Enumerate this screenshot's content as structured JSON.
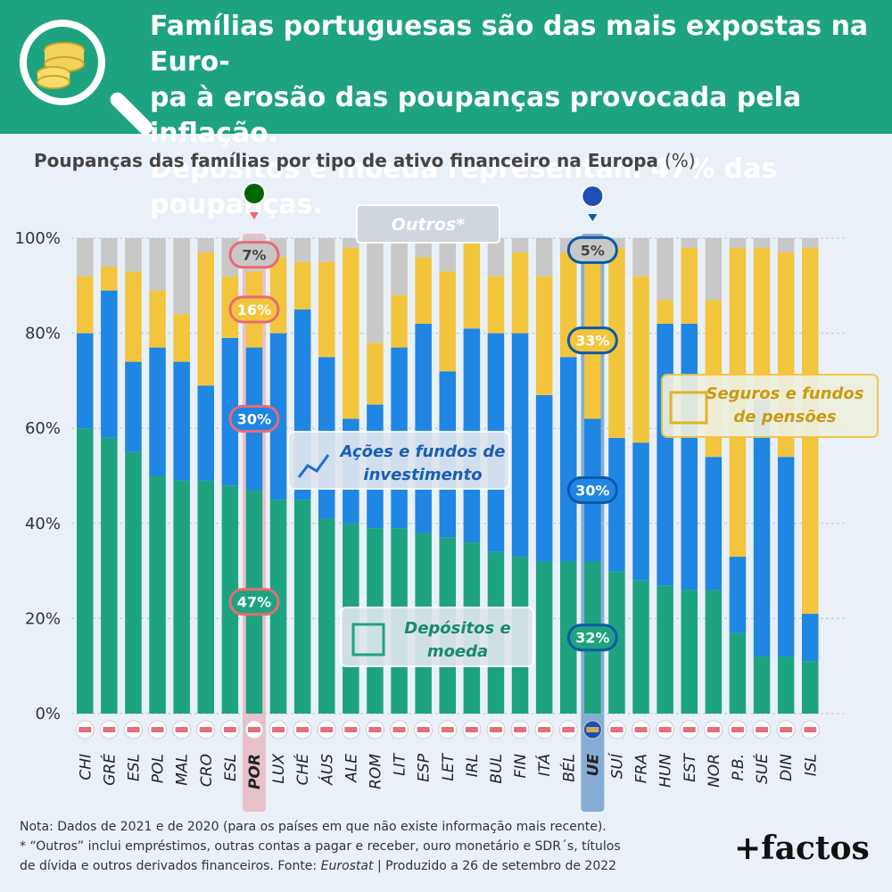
{
  "header": {
    "headline_1": "Famílias portuguesas são das mais expostas na Euro-",
    "headline_2": "pa à erosão das poupanças provocada pela inflação.",
    "headline_3": "Depósitos e moeda representam 47% das poupanças."
  },
  "subtitle": "Poupanças das famílias por tipo de ativo financeiro na Europa",
  "subtitle_unit": "(%)",
  "colors": {
    "depositos": "#1ea381",
    "acoes": "#1f86e3",
    "seguros": "#f2c53d",
    "outros": "#c8c8c8",
    "por_highlight": "#e86b76",
    "ue_highlight": "#0c5aa6"
  },
  "chart_data": {
    "type": "bar",
    "stacked": true,
    "categories": [
      "CHI",
      "GRÉ",
      "ESL",
      "POL",
      "MAL",
      "CRO",
      "ESL",
      "POR",
      "LUX",
      "CHÉ",
      "ÁUS",
      "ALE",
      "ROM",
      "LIT",
      "ESP",
      "LET",
      "IRL",
      "BUL",
      "FIN",
      "ITÁ",
      "BÉL",
      "UE",
      "SUÍ",
      "FRA",
      "HUN",
      "EST",
      "NOR",
      "P.B.",
      "SUÉ",
      "DIN",
      "ISL"
    ],
    "series": [
      {
        "name": "Depósitos e moeda",
        "values": [
          60,
          58,
          55,
          50,
          49,
          49,
          48,
          47,
          45,
          45,
          41,
          40,
          39,
          39,
          38,
          37,
          36,
          34,
          33,
          32,
          32,
          32,
          30,
          28,
          27,
          26,
          26,
          17,
          12,
          12,
          11
        ]
      },
      {
        "name": "Ações e fundos de investimento",
        "values": [
          20,
          31,
          19,
          27,
          25,
          20,
          31,
          30,
          35,
          40,
          34,
          22,
          26,
          38,
          44,
          35,
          45,
          46,
          47,
          35,
          43,
          30,
          28,
          29,
          55,
          56,
          28,
          16,
          54,
          42,
          10
        ]
      },
      {
        "name": "Seguros e fundos de pensões",
        "values": [
          12,
          5,
          19,
          12,
          10,
          28,
          13,
          16,
          16,
          10,
          20,
          36,
          13,
          11,
          14,
          21,
          18,
          12,
          17,
          25,
          22,
          33,
          40,
          35,
          5,
          16,
          33,
          65,
          32,
          43,
          77
        ]
      },
      {
        "name": "Outros*",
        "values": [
          8,
          6,
          7,
          11,
          16,
          3,
          8,
          7,
          4,
          5,
          5,
          2,
          22,
          12,
          4,
          7,
          1,
          8,
          3,
          8,
          3,
          5,
          2,
          8,
          13,
          2,
          13,
          2,
          2,
          3,
          2
        ]
      }
    ],
    "ylim": [
      0,
      100
    ],
    "yticks": [
      "0%",
      "20%",
      "40%",
      "60%",
      "80%",
      "100%"
    ],
    "highlights": {
      "POR": [
        "7%",
        "16%",
        "30%",
        "47%"
      ],
      "UE": [
        "5%",
        "33%",
        "30%",
        "32%"
      ]
    },
    "annotations": {
      "outros": "Outros*",
      "acoes_1": "Ações e fundos de",
      "acoes_2": "investimento",
      "depositos_1": "Depósitos e",
      "depositos_2": "moeda",
      "seguros_1": "Seguros e fundos",
      "seguros_2": "de pensões"
    }
  },
  "notes": {
    "line1": "Nota: Dados de 2021 e de 2020 (para os países em que não existe informação mais recente).",
    "line2": "* “Outros” inclui empréstimos, outras contas a pagar e receber, ouro monetário e SDR´s, títulos",
    "line3_a": "de dívida e outros derivados financeiros. Fonte: ",
    "line3_source": "Eurostat",
    "line3_b": " | Produzido a 26 de setembro de 2022"
  },
  "brand": "+factos"
}
